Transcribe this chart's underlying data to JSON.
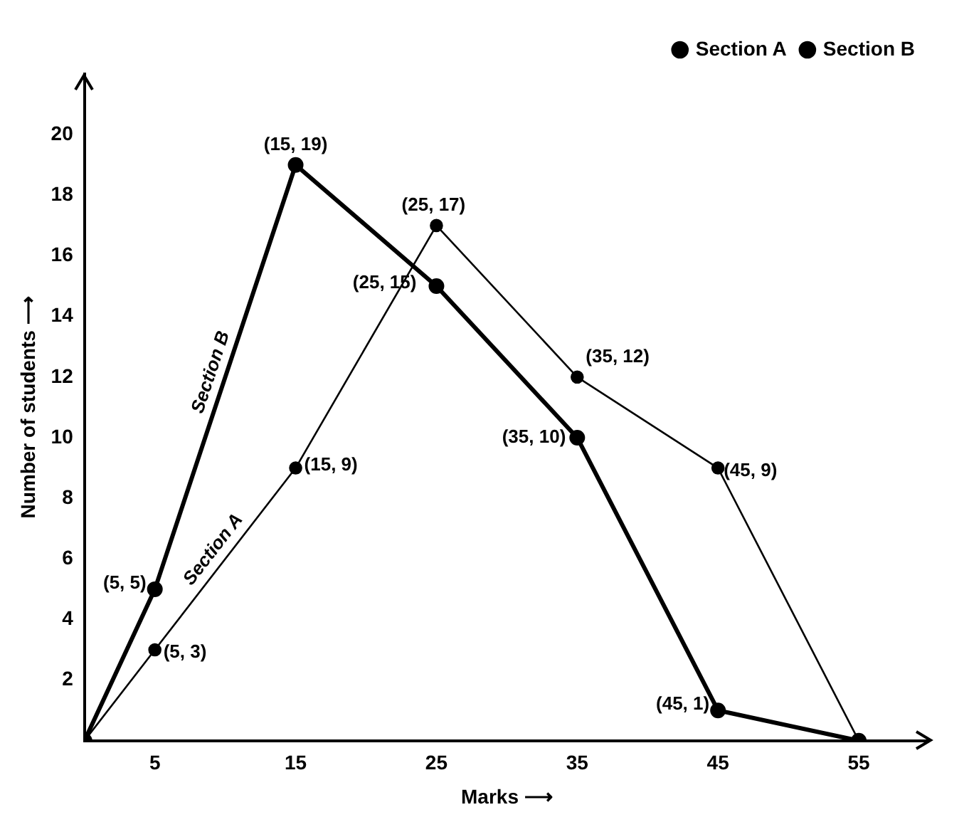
{
  "chart_data": {
    "type": "line",
    "xlabel": "Marks ⟶",
    "ylabel": "Number of students ⟶",
    "series": [
      {
        "name": "Section A",
        "color": "#000000",
        "x": [
          0,
          5,
          15,
          25,
          35,
          45,
          55
        ],
        "values": [
          0,
          3,
          9,
          17,
          12,
          9,
          0
        ]
      },
      {
        "name": "Section B",
        "color": "#000000",
        "x": [
          0,
          5,
          15,
          25,
          35,
          45,
          55
        ],
        "values": [
          0,
          5,
          19,
          15,
          10,
          1,
          0
        ]
      }
    ],
    "xlim": [
      0,
      60
    ],
    "xticks": [
      5,
      15,
      25,
      35,
      45,
      55
    ],
    "ylim": [
      0,
      22
    ],
    "yticks": [
      2,
      4,
      6,
      8,
      10,
      12,
      14,
      16,
      18,
      20
    ],
    "grid": false,
    "legend": "top right",
    "marker": "circle",
    "line_style": "solid",
    "annotations": [
      {
        "text": "(5, 3)",
        "x": 5,
        "y": 3
      },
      {
        "text": "(15, 9)",
        "x": 15,
        "y": 9
      },
      {
        "text": "(25, 17)",
        "x": 25,
        "y": 17
      },
      {
        "text": "(35, 12)",
        "x": 35,
        "y": 12
      },
      {
        "text": "(45, 9)",
        "x": 45,
        "y": 9
      },
      {
        "text": "(5, 5)",
        "x": 5,
        "y": 5
      },
      {
        "text": "(15, 19)",
        "x": 15,
        "y": 19
      },
      {
        "text": "(25, 15)",
        "x": 25,
        "y": 15
      },
      {
        "text": "(35, 10)",
        "x": 35,
        "y": 10
      },
      {
        "text": "(45, 1)",
        "x": 45,
        "y": 1
      }
    ]
  }
}
